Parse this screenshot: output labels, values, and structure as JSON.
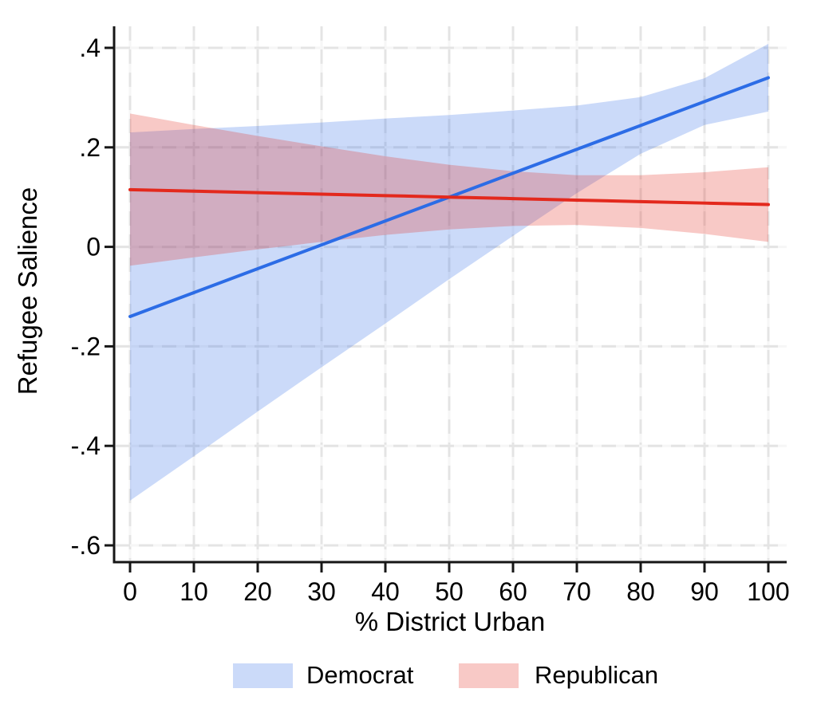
{
  "chart_data": {
    "type": "line",
    "title": "",
    "xlabel": "% District Urban",
    "ylabel": "Refugee Salience",
    "x": [
      0,
      10,
      20,
      30,
      40,
      50,
      60,
      70,
      80,
      90,
      100
    ],
    "xlim": [
      0,
      100
    ],
    "ylim": [
      -0.6,
      0.4
    ],
    "xticks": {
      "values": [
        0,
        10,
        20,
        30,
        40,
        50,
        60,
        70,
        80,
        90,
        100
      ],
      "labels": [
        "0",
        "10",
        "20",
        "30",
        "40",
        "50",
        "60",
        "70",
        "80",
        "90",
        "100"
      ]
    },
    "yticks": {
      "values": [
        0.4,
        0.2,
        0,
        -0.2,
        -0.4,
        -0.6
      ],
      "labels": [
        ".4",
        ".2",
        "0",
        "-.2",
        "-.4",
        "-.6"
      ]
    },
    "grid": "dashed gridlines on both axes",
    "legend_position": "bottom-center",
    "background_color": "#ffffff",
    "axis_color": "#161616",
    "gridline_color": "#e4e4e4",
    "series": [
      {
        "name": "Democrat",
        "line_color": "#2c6ce6",
        "band_color": "rgba(62,118,232,0.27)",
        "y": [
          -0.14,
          -0.092,
          -0.044,
          0.004,
          0.052,
          0.1,
          0.148,
          0.196,
          0.244,
          0.292,
          0.34
        ],
        "ci_upper": [
          0.23,
          0.237,
          0.243,
          0.25,
          0.258,
          0.265,
          0.274,
          0.284,
          0.301,
          0.339,
          0.408
        ],
        "ci_lower": [
          -0.51,
          -0.421,
          -0.331,
          -0.242,
          -0.154,
          -0.065,
          0.022,
          0.108,
          0.187,
          0.245,
          0.272
        ]
      },
      {
        "name": "Republican",
        "line_color": "#e3291d",
        "band_color": "rgba(228,45,35,0.26)",
        "y": [
          0.115,
          0.112,
          0.109,
          0.106,
          0.103,
          0.1,
          0.097,
          0.094,
          0.091,
          0.088,
          0.085
        ],
        "ci_upper": [
          0.268,
          0.245,
          0.223,
          0.202,
          0.182,
          0.165,
          0.152,
          0.144,
          0.144,
          0.15,
          0.16
        ],
        "ci_lower": [
          -0.038,
          -0.021,
          -0.005,
          0.01,
          0.024,
          0.035,
          0.042,
          0.044,
          0.038,
          0.026,
          0.01
        ]
      }
    ]
  }
}
